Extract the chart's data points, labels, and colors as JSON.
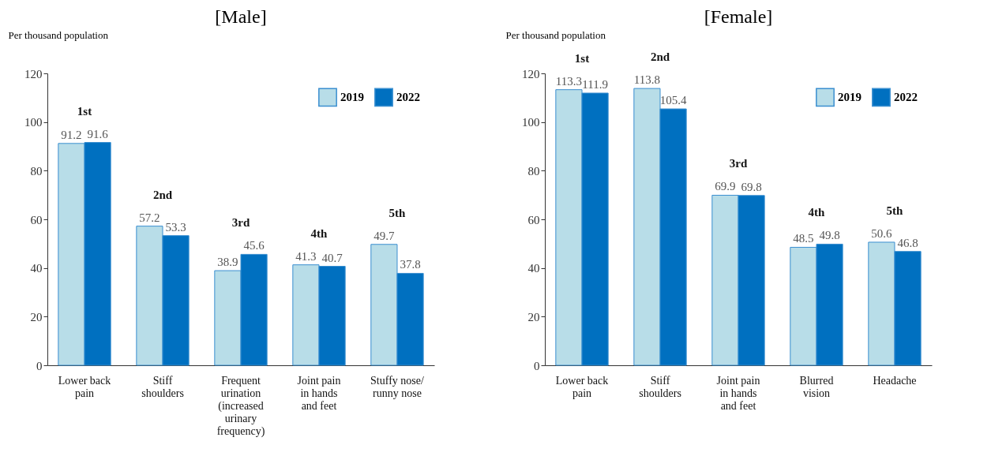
{
  "chart_data": [
    {
      "type": "bar",
      "title": "[Male]",
      "ylabel": "Per thousand population",
      "categories": [
        "Lower back\npain",
        "Stiff\nshoulders",
        "Frequent\nurination\n(increased\nurinary\nfrequency)",
        "Joint pain\nin hands\nand feet",
        "Stuffy nose/\nrunny nose"
      ],
      "series": [
        {
          "name": "2019",
          "color": "#b8dde8",
          "values": [
            91.2,
            57.2,
            38.9,
            41.3,
            49.7
          ]
        },
        {
          "name": "2022",
          "color": "#0070c0",
          "values": [
            91.6,
            53.3,
            45.6,
            40.7,
            37.8
          ]
        }
      ],
      "ylim": [
        0,
        120
      ],
      "yticks": [
        0,
        20,
        40,
        60,
        80,
        100,
        120
      ],
      "grid": false,
      "legend": "top right",
      "data_labels": true,
      "annotations": [
        "1st",
        "2nd",
        "3rd",
        "4th",
        "5th"
      ]
    },
    {
      "type": "bar",
      "title": "[Female]",
      "ylabel": "Per thousand population",
      "categories": [
        "Lower back\npain",
        "Stiff\nshoulders",
        "Joint pain\nin hands\nand feet",
        "Blurred\nvision",
        "Headache"
      ],
      "series": [
        {
          "name": "2019",
          "color": "#b8dde8",
          "values": [
            113.3,
            113.8,
            69.9,
            48.5,
            50.6
          ]
        },
        {
          "name": "2022",
          "color": "#0070c0",
          "values": [
            111.9,
            105.4,
            69.8,
            49.8,
            46.8
          ]
        }
      ],
      "ylim": [
        0,
        120
      ],
      "yticks": [
        0,
        20,
        40,
        60,
        80,
        100,
        120
      ],
      "grid": false,
      "legend": "top right",
      "data_labels": true,
      "annotations": [
        "1st",
        "2nd",
        "3rd",
        "4th",
        "5th"
      ]
    }
  ]
}
